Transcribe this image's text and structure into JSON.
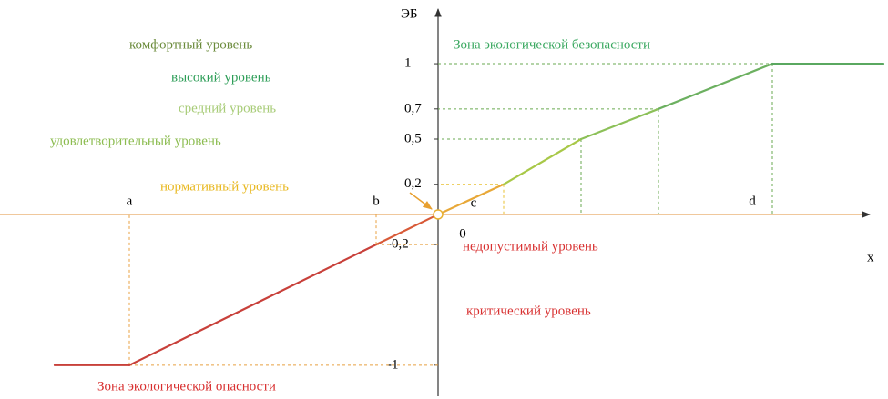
{
  "chart_data": {
    "type": "line",
    "y_axis_label": "ЭБ",
    "x_axis_label": "x",
    "categories": [
      null,
      "a",
      "b",
      "0",
      "c",
      null,
      null,
      "d",
      null
    ],
    "series": [
      {
        "values": [
          -1,
          -1,
          -0.2,
          0,
          0.2,
          0.5,
          0.7,
          1,
          1
        ],
        "segment_colors": [
          "#c8403a",
          "#c8403a",
          "#d85a38",
          "#e8a838",
          "#a8c848",
          "#8cc058",
          "#6cb060",
          "#5aa860"
        ]
      }
    ],
    "ylim": [
      -1.2,
      1.35
    ],
    "yticks": [
      1,
      {
        "value": 0.7,
        "label": "0,7"
      },
      {
        "value": 0.5,
        "label": "0,5"
      },
      {
        "value": 0.2,
        "label": "0,2"
      },
      {
        "value": -0.2,
        "label": "-0,2"
      },
      -1
    ],
    "annotations": [
      {
        "text": "комфортный уровень",
        "color": "#6a8a3a"
      },
      {
        "text": "высокий уровень",
        "color": "#2e9e58"
      },
      {
        "text": "средний уровень",
        "color": "#a8cc78"
      },
      {
        "text": "удовлетворительный уровень",
        "color": "#8cbc50"
      },
      {
        "text": "нормативный уровень",
        "color": "#e8b820"
      },
      {
        "text": "недопустимый уровень",
        "color": "#d83030"
      },
      {
        "text": "критический уровень",
        "color": "#d83030"
      }
    ],
    "zones": [
      {
        "text": "Зона экологической безопасности",
        "color": "#3aa860"
      },
      {
        "text": "Зона экологической опасности",
        "color": "#d83030"
      }
    ]
  }
}
